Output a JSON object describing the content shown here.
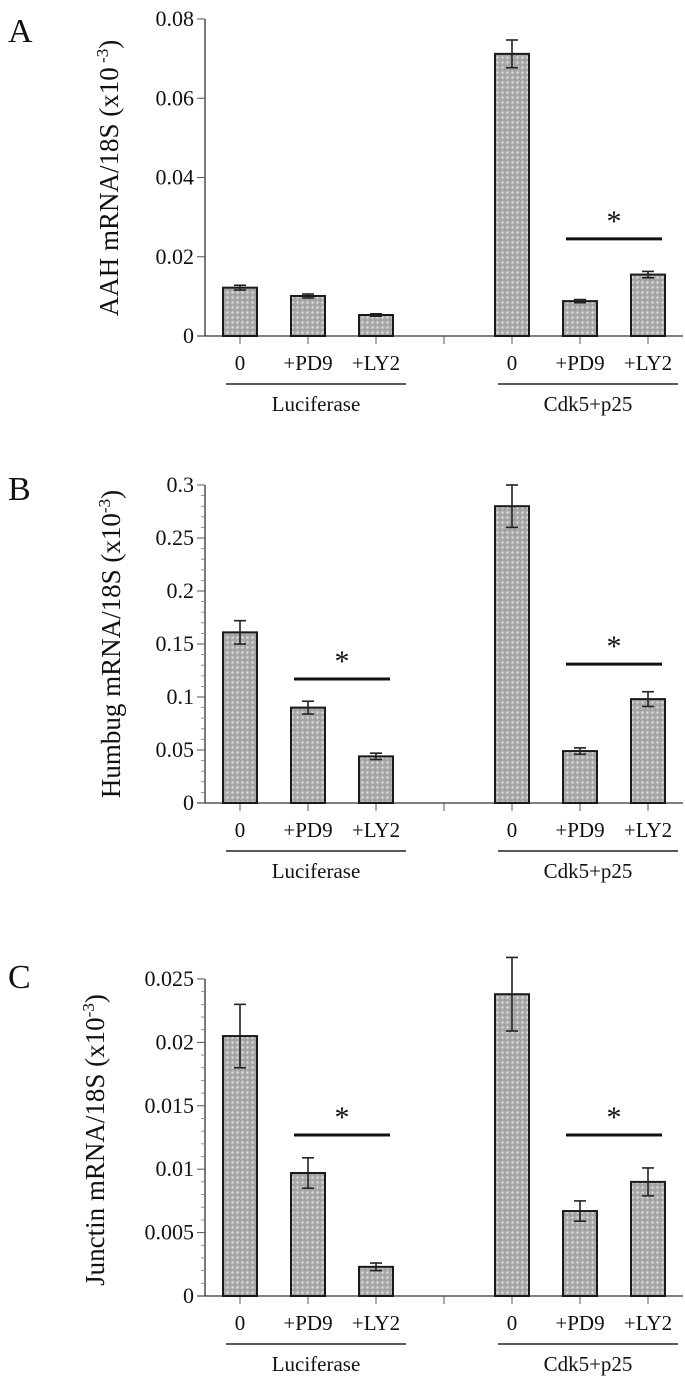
{
  "figure": {
    "bar_fill_color": "#a9a9a9",
    "bar_pattern_light": "#d9d9d9",
    "bar_stroke_color": "#1a1a1a"
  },
  "chart_data": [
    {
      "type": "bar",
      "panel": "A",
      "title": "",
      "ylabel": "AAH mRNA/18S (x10",
      "ylabel_sup": " -3",
      "ylabel_end": ")",
      "xlabel": "",
      "ylim": [
        0,
        0.08
      ],
      "yticks": [
        0,
        0.02,
        0.04,
        0.06,
        0.08
      ],
      "ytick_labels": [
        "0",
        "0.02",
        "0.04",
        "0.06",
        "0.08"
      ],
      "minor_ticks_per_interval": 0,
      "categories": [
        "0",
        "+PD9",
        "+LY2",
        "",
        "0",
        "+PD9",
        "+LY2"
      ],
      "groups": [
        {
          "label": "Luciferase",
          "category_indices": [
            0,
            1,
            2
          ]
        },
        {
          "label": "Cdk5+p25",
          "category_indices": [
            4,
            5,
            6
          ]
        }
      ],
      "values": [
        0.0122,
        0.0101,
        0.0053,
        null,
        0.0712,
        0.0088,
        0.0155
      ],
      "errors": [
        0.0006,
        0.0005,
        0.0003,
        null,
        0.0035,
        0.0004,
        0.0008
      ],
      "significance": [
        {
          "from": 5,
          "to": 6,
          "label": "*",
          "y": 0.0245
        }
      ],
      "grid": false,
      "legend": "none"
    },
    {
      "type": "bar",
      "panel": "B",
      "title": "",
      "ylabel": "Humbug mRNA/18S (x10",
      "ylabel_sup": "-3",
      "ylabel_end": ")",
      "xlabel": "",
      "ylim": [
        0,
        0.3
      ],
      "yticks": [
        0,
        0.05,
        0.1,
        0.15,
        0.2,
        0.25,
        0.3
      ],
      "ytick_labels": [
        "0",
        "0.05",
        "0.1",
        "0.15",
        "0.2",
        "0.25",
        "0.3"
      ],
      "minor_ticks_per_interval": 4,
      "categories": [
        "0",
        "+PD9",
        "+LY2",
        "",
        "0",
        "+PD9",
        "+LY2"
      ],
      "groups": [
        {
          "label": "Luciferase",
          "category_indices": [
            0,
            1,
            2
          ]
        },
        {
          "label": "Cdk5+p25",
          "category_indices": [
            4,
            5,
            6
          ]
        }
      ],
      "values": [
        0.161,
        0.09,
        0.044,
        null,
        0.28,
        0.049,
        0.098
      ],
      "errors": [
        0.011,
        0.006,
        0.003,
        null,
        0.02,
        0.003,
        0.007
      ],
      "significance": [
        {
          "from": 1,
          "to": 2,
          "label": "*",
          "y": 0.117
        },
        {
          "from": 5,
          "to": 6,
          "label": "*",
          "y": 0.131
        }
      ],
      "grid": false,
      "legend": "none"
    },
    {
      "type": "bar",
      "panel": "C",
      "title": "",
      "ylabel": "Junctin mRNA/18S (x10",
      "ylabel_sup": "-3",
      "ylabel_end": ")",
      "xlabel": "",
      "ylim": [
        0,
        0.025
      ],
      "yticks": [
        0,
        0.005,
        0.01,
        0.015,
        0.02,
        0.025
      ],
      "ytick_labels": [
        "0",
        "0.005",
        "0.01",
        "0.015",
        "0.02",
        "0.025"
      ],
      "minor_ticks_per_interval": 4,
      "categories": [
        "0",
        "+PD9",
        "+LY2",
        "",
        "0",
        "+PD9",
        "+LY2"
      ],
      "groups": [
        {
          "label": "Luciferase",
          "category_indices": [
            0,
            1,
            2
          ]
        },
        {
          "label": "Cdk5+p25",
          "category_indices": [
            4,
            5,
            6
          ]
        }
      ],
      "values": [
        0.0205,
        0.0097,
        0.0023,
        null,
        0.0238,
        0.0067,
        0.009
      ],
      "errors": [
        0.0025,
        0.0012,
        0.0003,
        null,
        0.0029,
        0.0008,
        0.0011
      ],
      "significance": [
        {
          "from": 1,
          "to": 2,
          "label": "*",
          "y": 0.0127
        },
        {
          "from": 5,
          "to": 6,
          "label": "*",
          "y": 0.0127
        }
      ],
      "grid": false,
      "legend": "none"
    }
  ]
}
